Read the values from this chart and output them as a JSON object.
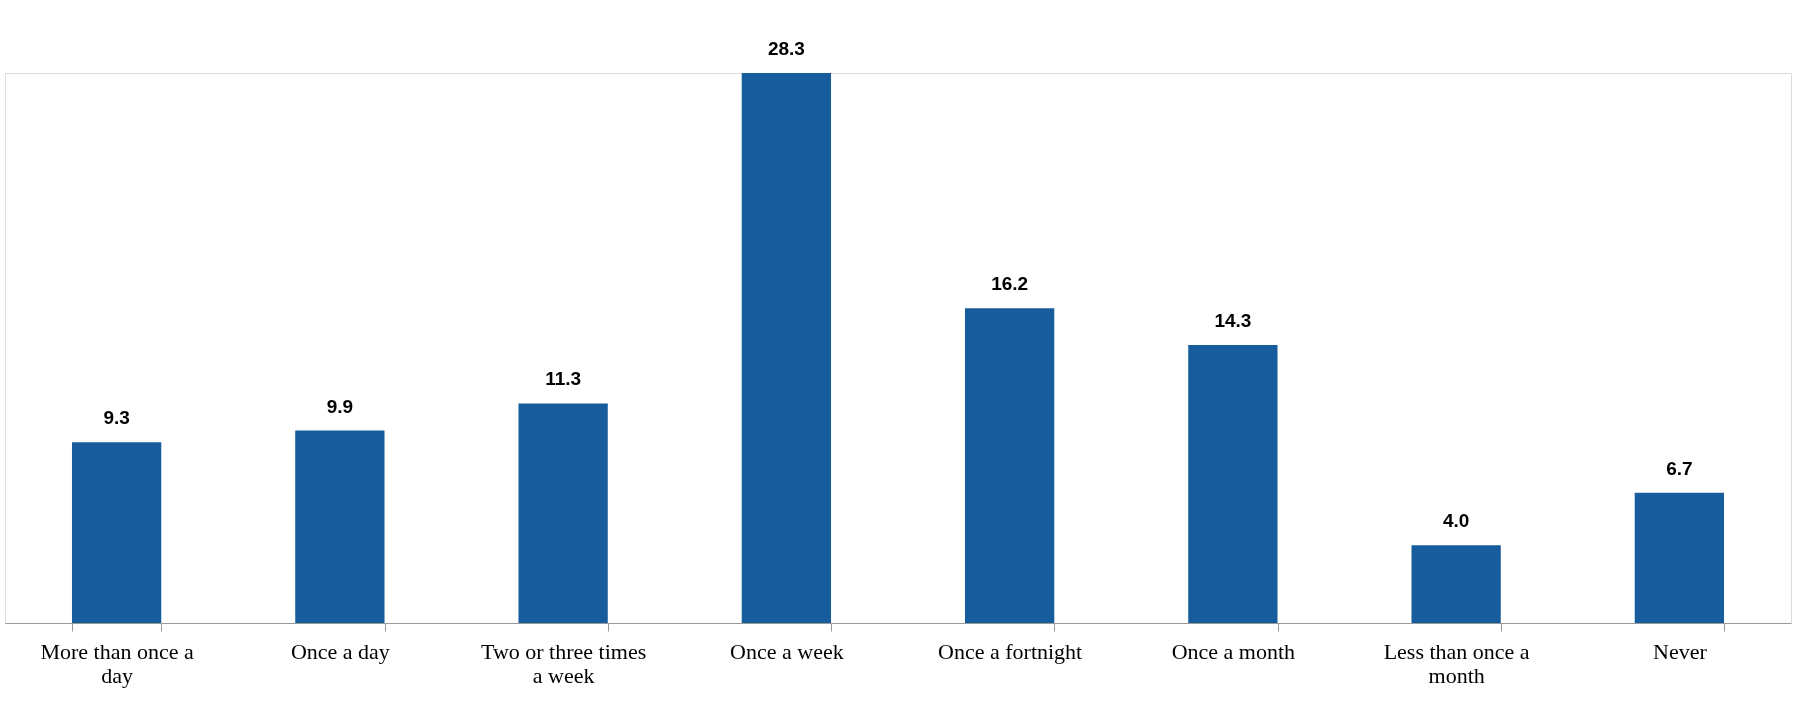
{
  "chart_data": {
    "type": "bar",
    "categories": [
      "More than once a day",
      "Once a day",
      "Two or three times a week",
      "Once a week",
      "Once a fortnight",
      "Once a month",
      "Less than once a month",
      "Never"
    ],
    "values": [
      9.3,
      9.9,
      11.3,
      28.3,
      16.2,
      14.3,
      4.0,
      6.7
    ],
    "color": "#175d9d",
    "value_labels": [
      "9.3",
      "9.9",
      "11.3",
      "28.3",
      "16.2",
      "14.3",
      "4.0",
      "6.7"
    ],
    "grid": false
  }
}
